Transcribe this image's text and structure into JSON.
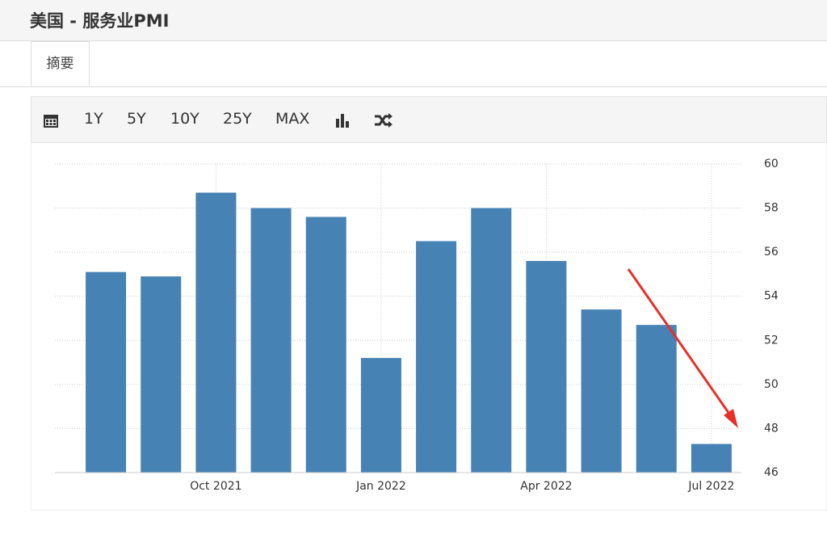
{
  "page": {
    "title": "美国 - 服务业PMI",
    "tab": "摘要",
    "toolbar": [
      "1Y",
      "5Y",
      "10Y",
      "25Y",
      "MAX"
    ]
  },
  "chart_data": {
    "type": "bar",
    "categories": [
      null,
      null,
      "Oct 2021",
      null,
      null,
      "Jan 2022",
      null,
      null,
      "Apr 2022",
      null,
      null,
      "Jul 2022"
    ],
    "values": [
      55.1,
      54.9,
      58.7,
      58.0,
      57.6,
      51.2,
      56.5,
      58.0,
      55.6,
      53.4,
      52.7,
      47.3
    ],
    "color": "#4682b4",
    "ylim": [
      46,
      60
    ],
    "yticks": [
      46,
      48,
      50,
      52,
      54,
      56,
      58,
      60
    ],
    "grid": true
  }
}
